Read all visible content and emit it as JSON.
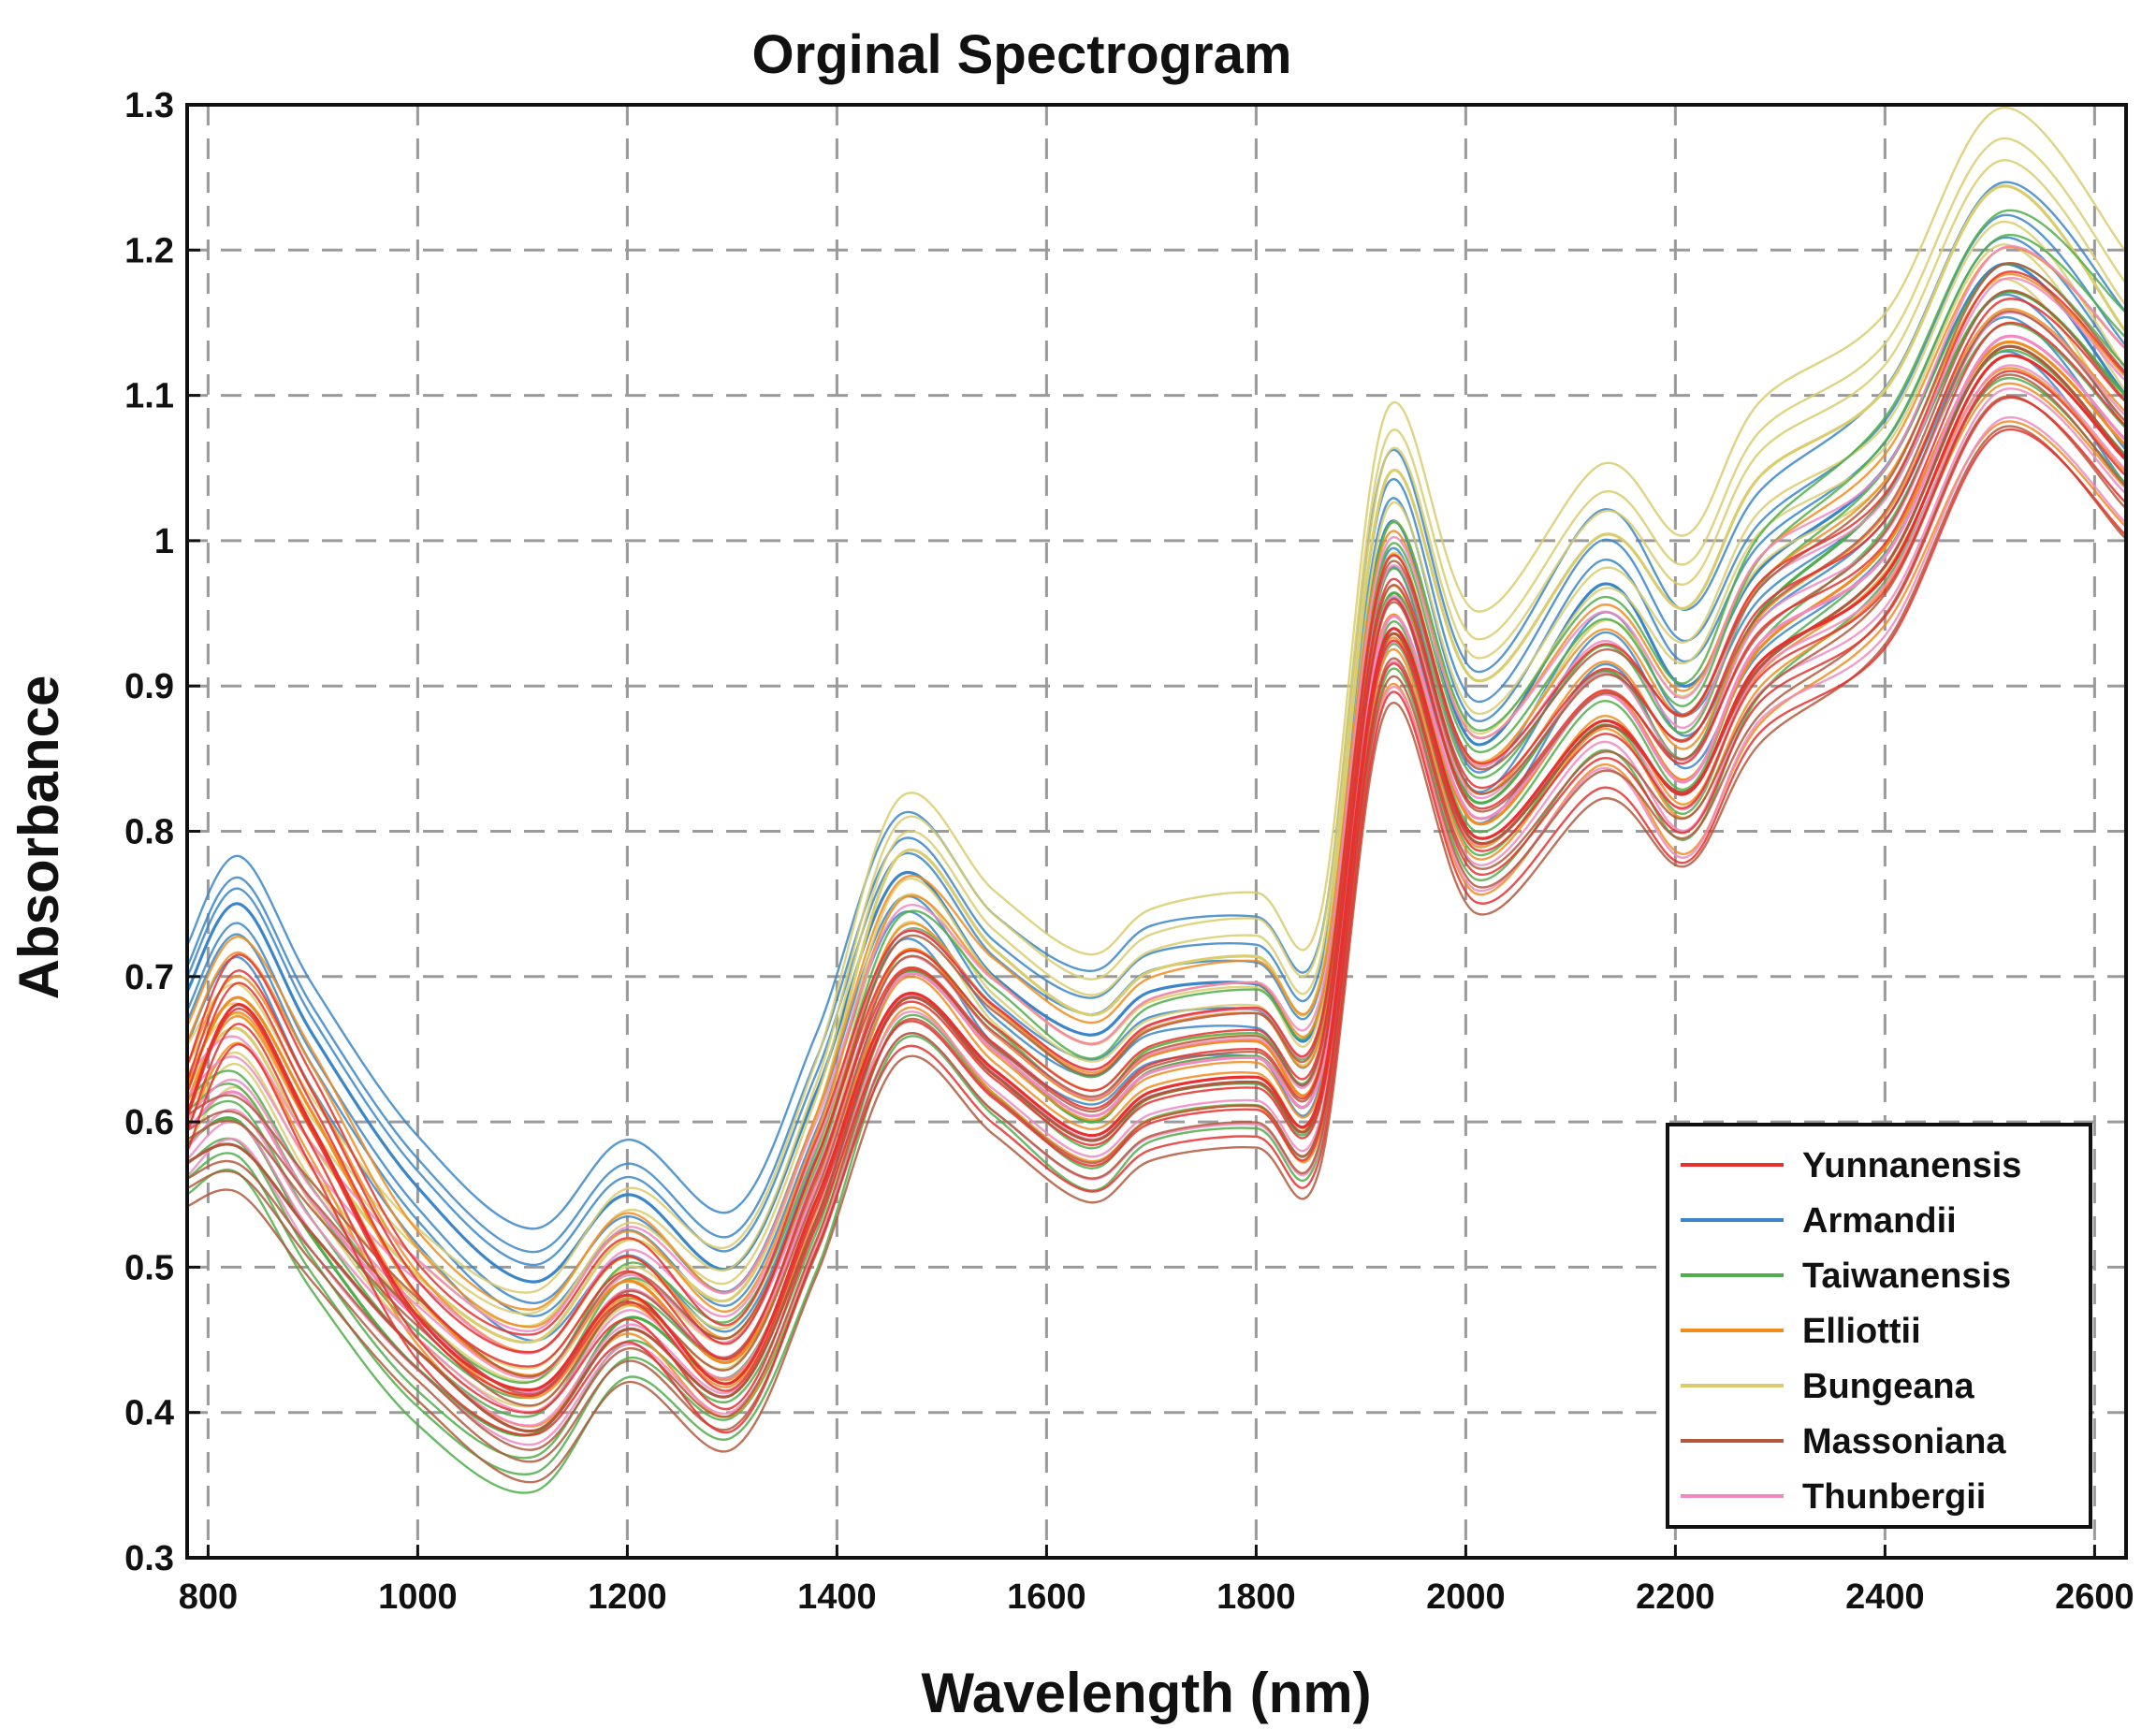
{
  "chart_data": {
    "type": "line",
    "title": "Orginal Spectrogram",
    "xlabel": "Wavelength (nm)",
    "ylabel": "Absorbance",
    "xlim": [
      780,
      2630
    ],
    "ylim": [
      0.3,
      1.3
    ],
    "xticks": [
      "800",
      "1000",
      "1200",
      "1400",
      "1600",
      "1800",
      "2000",
      "2200",
      "2400",
      "2600"
    ],
    "yticks": [
      "0.3",
      "0.4",
      "0.5",
      "0.6",
      "0.7",
      "0.8",
      "0.9",
      "1",
      "1.1",
      "1.2",
      "1.3"
    ],
    "grid": true,
    "legend_position": "bottom-right",
    "x": [
      780,
      830,
      900,
      1000,
      1110,
      1200,
      1300,
      1380,
      1460,
      1550,
      1640,
      1700,
      1800,
      1860,
      1925,
      2010,
      2130,
      2210,
      2280,
      2400,
      2510,
      2630
    ],
    "series": [
      {
        "name": "Yunnanensis",
        "color": "#e8302e",
        "values": [
          0.61,
          0.685,
          0.6,
          0.47,
          0.42,
          0.485,
          0.425,
          0.55,
          0.69,
          0.64,
          0.595,
          0.625,
          0.635,
          0.62,
          0.94,
          0.8,
          0.88,
          0.83,
          0.92,
          0.98,
          1.13,
          1.06
        ]
      },
      {
        "name": "Armandii",
        "color": "#3a86c8",
        "values": [
          0.69,
          0.75,
          0.66,
          0.555,
          0.49,
          0.55,
          0.5,
          0.62,
          0.77,
          0.7,
          0.66,
          0.69,
          0.695,
          0.675,
          1.01,
          0.86,
          0.97,
          0.9,
          0.98,
          1.05,
          1.19,
          1.1
        ]
      },
      {
        "name": "Taiwanensis",
        "color": "#4fae4a",
        "values": [
          0.585,
          0.6,
          0.52,
          0.43,
          0.385,
          0.465,
          0.425,
          0.54,
          0.7,
          0.65,
          0.6,
          0.635,
          0.645,
          0.63,
          0.96,
          0.82,
          0.91,
          0.85,
          0.95,
          1.03,
          1.17,
          1.1
        ]
      },
      {
        "name": "Elliottii",
        "color": "#f28c1e",
        "values": [
          0.63,
          0.69,
          0.61,
          0.485,
          0.43,
          0.495,
          0.44,
          0.56,
          0.72,
          0.665,
          0.62,
          0.65,
          0.66,
          0.64,
          0.95,
          0.81,
          0.9,
          0.84,
          0.93,
          1.0,
          1.14,
          1.07
        ]
      },
      {
        "name": "Bungeana",
        "color": "#d9cd6d",
        "values": [
          0.62,
          0.66,
          0.58,
          0.49,
          0.445,
          0.515,
          0.475,
          0.6,
          0.78,
          0.715,
          0.67,
          0.7,
          0.71,
          0.69,
          1.04,
          0.9,
          1.0,
          0.95,
          1.04,
          1.1,
          1.24,
          1.14
        ]
      },
      {
        "name": "Massoniana",
        "color": "#b1593c",
        "values": [
          0.575,
          0.585,
          0.525,
          0.445,
          0.39,
          0.46,
          0.415,
          0.535,
          0.685,
          0.635,
          0.59,
          0.62,
          0.63,
          0.615,
          0.935,
          0.795,
          0.875,
          0.83,
          0.915,
          0.985,
          1.135,
          1.06
        ]
      },
      {
        "name": "Thunbergii",
        "color": "#f08ac0",
        "values": [
          0.595,
          0.62,
          0.545,
          0.465,
          0.415,
          0.485,
          0.44,
          0.555,
          0.7,
          0.65,
          0.605,
          0.635,
          0.645,
          0.63,
          0.945,
          0.81,
          0.895,
          0.835,
          0.93,
          0.99,
          1.14,
          1.07
        ]
      }
    ]
  }
}
